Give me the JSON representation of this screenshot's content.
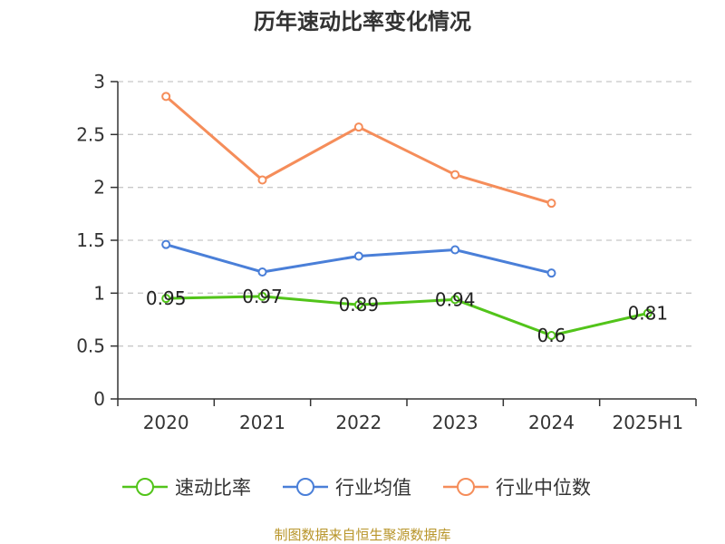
{
  "chart_data": {
    "type": "line",
    "title": "历年速动比率变化情况",
    "categories": [
      "2020",
      "2021",
      "2022",
      "2023",
      "2024",
      "2025H1"
    ],
    "ylim": [
      0,
      3
    ],
    "yticks": [
      "0",
      "0.5",
      "1",
      "1.5",
      "2",
      "2.5",
      "3"
    ],
    "grid": true,
    "legend_position": "bottom",
    "series": [
      {
        "name": "速动比率",
        "color": "#52c41a",
        "values": [
          0.95,
          0.97,
          0.89,
          0.94,
          0.6,
          0.81
        ],
        "labels": [
          "0.95",
          "0.97",
          "0.89",
          "0.94",
          "0.6",
          "0.81"
        ]
      },
      {
        "name": "行业均值",
        "color": "#4a7fd8",
        "values": [
          1.46,
          1.2,
          1.35,
          1.41,
          1.19,
          null
        ]
      },
      {
        "name": "行业中位数",
        "color": "#f58d5a",
        "values": [
          2.86,
          2.07,
          2.57,
          2.12,
          1.85,
          null
        ]
      }
    ],
    "source": "制图数据来自恒生聚源数据库"
  }
}
